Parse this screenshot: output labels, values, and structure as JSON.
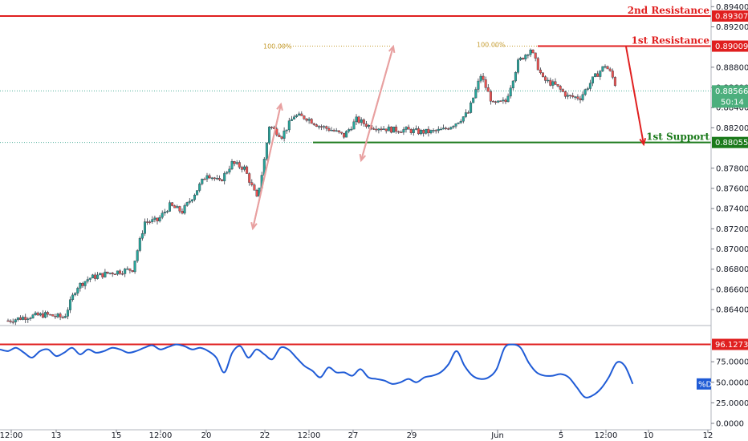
{
  "colors": {
    "up_candle": "#26a69a",
    "down_candle": "#ef5350",
    "candle_outline": "#363a45",
    "resistance": "#e01f1f",
    "support": "#1b7a1b",
    "projection_arrow": "#e8a0a0",
    "fib_line": "#c49a2c",
    "dotted_price": "#4caf9a",
    "stochastic": "#1f5bd6",
    "grid_axis": "#787b86",
    "current_badge": "#4caf7d",
    "oscillator_badge": "#1f5bd6"
  },
  "chart_data": [
    {
      "type": "candlestick",
      "x_tick_labels": [
        "12:00",
        "13",
        "15",
        "12:00",
        "20",
        "22",
        "12:00",
        "27",
        "29",
        "Jun",
        "5",
        "12:00",
        "10",
        "12"
      ],
      "y_tick_labels": [
        "0.89400",
        "0.89200",
        "0.88800",
        "0.88600",
        "0.88400",
        "0.88200",
        "0.87800",
        "0.87600",
        "0.87400",
        "0.87200",
        "0.87000",
        "0.86800",
        "0.86600",
        "0.86400"
      ],
      "ylim": [
        0.8625,
        0.8945
      ],
      "levels": [
        {
          "name": "2nd Resistance",
          "value": 0.89307,
          "label": "0.89307"
        },
        {
          "name": "1st Resistance",
          "value": 0.89009,
          "label": "0.89009"
        },
        {
          "name": "1st Support",
          "value": 0.88055,
          "label": "0.88055"
        }
      ],
      "current_price": {
        "value": 0.88566,
        "label": "0.88566",
        "countdown": "50:14"
      },
      "fib_labels": [
        "100.00%",
        "100.00%"
      ],
      "trend": [
        [
          0,
          0.8629
        ],
        [
          3,
          0.8633
        ],
        [
          6,
          0.8635
        ],
        [
          9,
          0.8632
        ],
        [
          11,
          0.8662
        ],
        [
          13,
          0.8671
        ],
        [
          16,
          0.8676
        ],
        [
          18,
          0.8678
        ],
        [
          20,
          0.868
        ],
        [
          22,
          0.8727
        ],
        [
          24,
          0.8728
        ],
        [
          26,
          0.8743
        ],
        [
          28,
          0.8737
        ],
        [
          30,
          0.8755
        ],
        [
          32,
          0.8775
        ],
        [
          34,
          0.8766
        ],
        [
          36,
          0.8785
        ],
        [
          38,
          0.878
        ],
        [
          40,
          0.875
        ],
        [
          41,
          0.878
        ],
        [
          42,
          0.8822
        ],
        [
          44,
          0.8812
        ],
        [
          46,
          0.8832
        ],
        [
          48,
          0.883
        ],
        [
          50,
          0.8822
        ],
        [
          52,
          0.8818
        ],
        [
          54,
          0.8812
        ],
        [
          56,
          0.8828
        ],
        [
          58,
          0.8822
        ],
        [
          60,
          0.882
        ],
        [
          62,
          0.8818
        ],
        [
          64,
          0.8818
        ],
        [
          66,
          0.8816
        ],
        [
          68,
          0.8816
        ],
        [
          70,
          0.8818
        ],
        [
          72,
          0.8825
        ],
        [
          74,
          0.8835
        ],
        [
          76,
          0.8872
        ],
        [
          78,
          0.8843
        ],
        [
          80,
          0.8846
        ],
        [
          82,
          0.8885
        ],
        [
          84,
          0.8898
        ],
        [
          86,
          0.8868
        ],
        [
          88,
          0.8862
        ],
        [
          90,
          0.8851
        ],
        [
          92,
          0.885
        ],
        [
          94,
          0.8868
        ],
        [
          96,
          0.8882
        ],
        [
          97,
          0.8873
        ],
        [
          98,
          0.8857
        ]
      ]
    },
    {
      "type": "line",
      "series": [
        {
          "name": "%D"
        }
      ],
      "y_tick_labels": [
        "96.1273",
        "75.0000",
        "50.0000",
        "25.0000",
        "0.0000"
      ],
      "ylim": [
        0,
        100
      ],
      "level": {
        "value": 96.1273,
        "label": "96.1273"
      },
      "line_label": "%D",
      "points": [
        [
          0,
          90
        ],
        [
          1,
          88
        ],
        [
          2,
          92
        ],
        [
          3,
          86
        ],
        [
          4,
          80
        ],
        [
          5,
          88
        ],
        [
          6,
          90
        ],
        [
          7,
          82
        ],
        [
          8,
          86
        ],
        [
          9,
          92
        ],
        [
          10,
          84
        ],
        [
          11,
          90
        ],
        [
          12,
          86
        ],
        [
          13,
          88
        ],
        [
          14,
          92
        ],
        [
          15,
          90
        ],
        [
          16,
          86
        ],
        [
          17,
          88
        ],
        [
          18,
          92
        ],
        [
          19,
          95
        ],
        [
          20,
          90
        ],
        [
          21,
          93
        ],
        [
          22,
          96
        ],
        [
          23,
          94
        ],
        [
          24,
          90
        ],
        [
          25,
          92
        ],
        [
          26,
          88
        ],
        [
          27,
          80
        ],
        [
          28,
          62
        ],
        [
          29,
          86
        ],
        [
          30,
          94
        ],
        [
          31,
          80
        ],
        [
          32,
          90
        ],
        [
          33,
          84
        ],
        [
          34,
          78
        ],
        [
          35,
          92
        ],
        [
          36,
          90
        ],
        [
          37,
          80
        ],
        [
          38,
          70
        ],
        [
          39,
          64
        ],
        [
          40,
          56
        ],
        [
          41,
          68
        ],
        [
          42,
          62
        ],
        [
          43,
          62
        ],
        [
          44,
          58
        ],
        [
          45,
          66
        ],
        [
          46,
          56
        ],
        [
          47,
          54
        ],
        [
          48,
          52
        ],
        [
          49,
          48
        ],
        [
          50,
          50
        ],
        [
          51,
          54
        ],
        [
          52,
          50
        ],
        [
          53,
          56
        ],
        [
          54,
          58
        ],
        [
          55,
          62
        ],
        [
          56,
          72
        ],
        [
          57,
          88
        ],
        [
          58,
          70
        ],
        [
          59,
          58
        ],
        [
          60,
          54
        ],
        [
          61,
          56
        ],
        [
          62,
          66
        ],
        [
          63,
          92
        ],
        [
          64,
          96
        ],
        [
          65,
          92
        ],
        [
          66,
          74
        ],
        [
          67,
          62
        ],
        [
          68,
          58
        ],
        [
          69,
          58
        ],
        [
          70,
          60
        ],
        [
          71,
          56
        ],
        [
          72,
          44
        ],
        [
          73,
          32
        ],
        [
          74,
          34
        ],
        [
          75,
          42
        ],
        [
          76,
          56
        ],
        [
          77,
          74
        ],
        [
          78,
          70
        ],
        [
          79,
          48
        ]
      ]
    }
  ]
}
